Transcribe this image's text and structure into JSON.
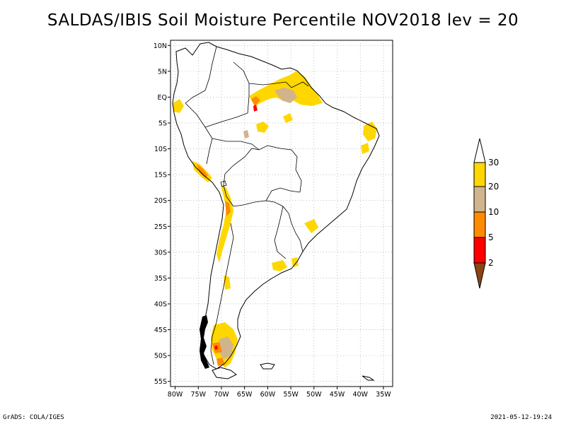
{
  "title": "SALDAS/IBIS Soil Moisture Percentile NOV2018 lev = 20",
  "axes": {
    "lat_ticks": [
      "10N",
      "5N",
      "EQ",
      "5S",
      "10S",
      "15S",
      "20S",
      "25S",
      "30S",
      "35S",
      "40S",
      "45S",
      "50S",
      "55S"
    ],
    "lon_ticks": [
      "80W",
      "75W",
      "70W",
      "65W",
      "60W",
      "55W",
      "50W",
      "45W",
      "40W",
      "35W"
    ],
    "lat_range": [
      -56,
      11
    ],
    "lon_range": [
      -81,
      -33
    ],
    "grid": "dotted"
  },
  "colorbar": {
    "levels": [
      "2",
      "5",
      "10",
      "20",
      "30"
    ],
    "colors": {
      "below_2": "#8b4513",
      "2_5": "#ff0000",
      "5_10": "#ff8c00",
      "10_20": "#d2b48c",
      "20_30": "#ffd700",
      "above_30": "#ffffff"
    }
  },
  "footer": {
    "credit": "GrADS: COLA/IGES",
    "timestamp": "2021-05-12-19:24"
  }
}
